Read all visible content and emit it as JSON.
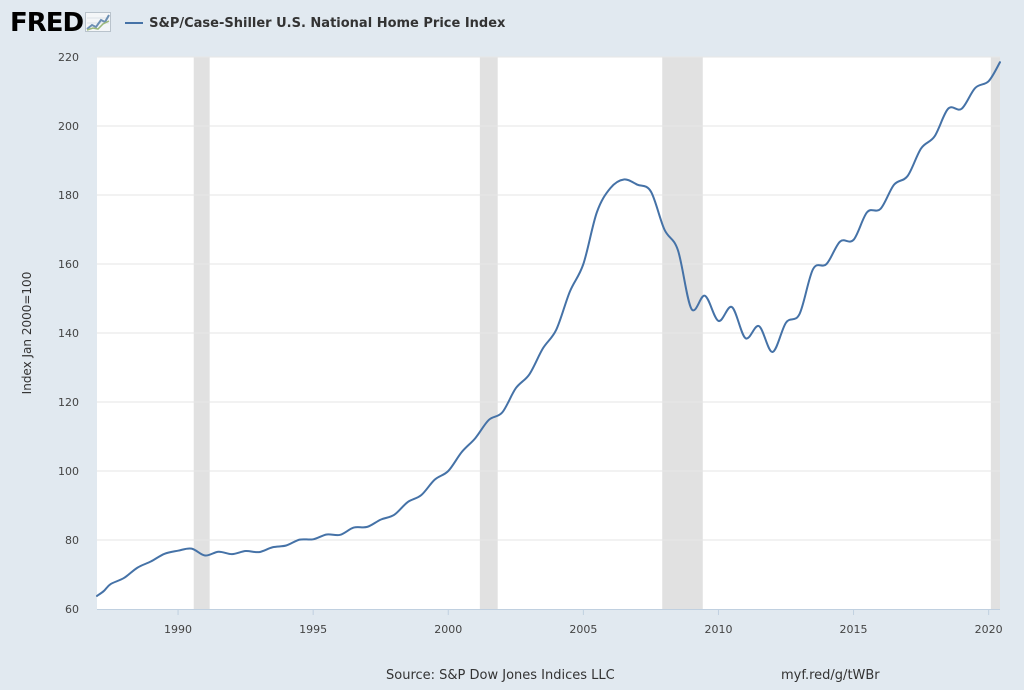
{
  "header": {
    "logo_text": "FRED",
    "logo_icon": "chart-trend-icon"
  },
  "chart_data": {
    "type": "line",
    "title": "",
    "legend_position": "top-left",
    "grid": true,
    "xlabel": "",
    "ylabel": "Index Jan 2000=100",
    "ylim": [
      60,
      220
    ],
    "yticks": [
      60,
      80,
      100,
      120,
      140,
      160,
      180,
      200,
      220
    ],
    "xlim": [
      1987.0,
      2020.42
    ],
    "xticks": [
      "1990",
      "1995",
      "2000",
      "2005",
      "2010",
      "2015",
      "2020"
    ],
    "recessions": [
      [
        1990.58,
        1991.17
      ],
      [
        2001.17,
        2001.83
      ],
      [
        2007.92,
        2009.42
      ],
      [
        2020.08,
        2020.42
      ]
    ],
    "series": [
      {
        "name": "S&P/Case-Shiller U.S. National Home Price Index",
        "color": "#4572a7",
        "x": [
          1987.0,
          1987.25,
          1987.5,
          1988.0,
          1988.5,
          1989.0,
          1989.5,
          1990.0,
          1990.5,
          1991.0,
          1991.5,
          1992.0,
          1992.5,
          1993.0,
          1993.5,
          1994.0,
          1994.5,
          1995.0,
          1995.5,
          1996.0,
          1996.5,
          1997.0,
          1997.5,
          1998.0,
          1998.5,
          1999.0,
          1999.5,
          2000.0,
          2000.5,
          2001.0,
          2001.5,
          2002.0,
          2002.5,
          2003.0,
          2003.5,
          2004.0,
          2004.5,
          2005.0,
          2005.5,
          2006.0,
          2006.5,
          2007.0,
          2007.5,
          2008.0,
          2008.5,
          2009.0,
          2009.5,
          2010.0,
          2010.5,
          2011.0,
          2011.5,
          2012.0,
          2012.5,
          2013.0,
          2013.5,
          2014.0,
          2014.5,
          2015.0,
          2015.5,
          2016.0,
          2016.5,
          2017.0,
          2017.5,
          2018.0,
          2018.5,
          2019.0,
          2019.5,
          2020.0,
          2020.42
        ],
        "y": [
          63.8,
          65.2,
          67.2,
          69.0,
          72.0,
          73.8,
          76.0,
          76.9,
          77.5,
          75.5,
          76.6,
          75.9,
          76.8,
          76.5,
          77.9,
          78.4,
          80.1,
          80.2,
          81.6,
          81.5,
          83.6,
          83.8,
          85.9,
          87.3,
          91.0,
          93.0,
          97.5,
          100.0,
          105.5,
          109.5,
          114.8,
          117.0,
          124.0,
          128.0,
          135.5,
          141.0,
          152.0,
          160.0,
          175.0,
          182.0,
          184.5,
          183.0,
          181.0,
          170.0,
          164.0,
          147.0,
          150.8,
          143.5,
          147.5,
          138.5,
          142.0,
          134.5,
          143.0,
          145.5,
          158.5,
          160.0,
          166.5,
          167.0,
          175.0,
          176.0,
          183.0,
          185.5,
          193.5,
          197.0,
          205.0,
          205.0,
          211.0,
          213.0,
          218.5
        ]
      }
    ]
  },
  "footer": {
    "source": "Source: S&P Dow Jones Indices LLC",
    "shortlink": "myf.red/g/tWBr"
  }
}
